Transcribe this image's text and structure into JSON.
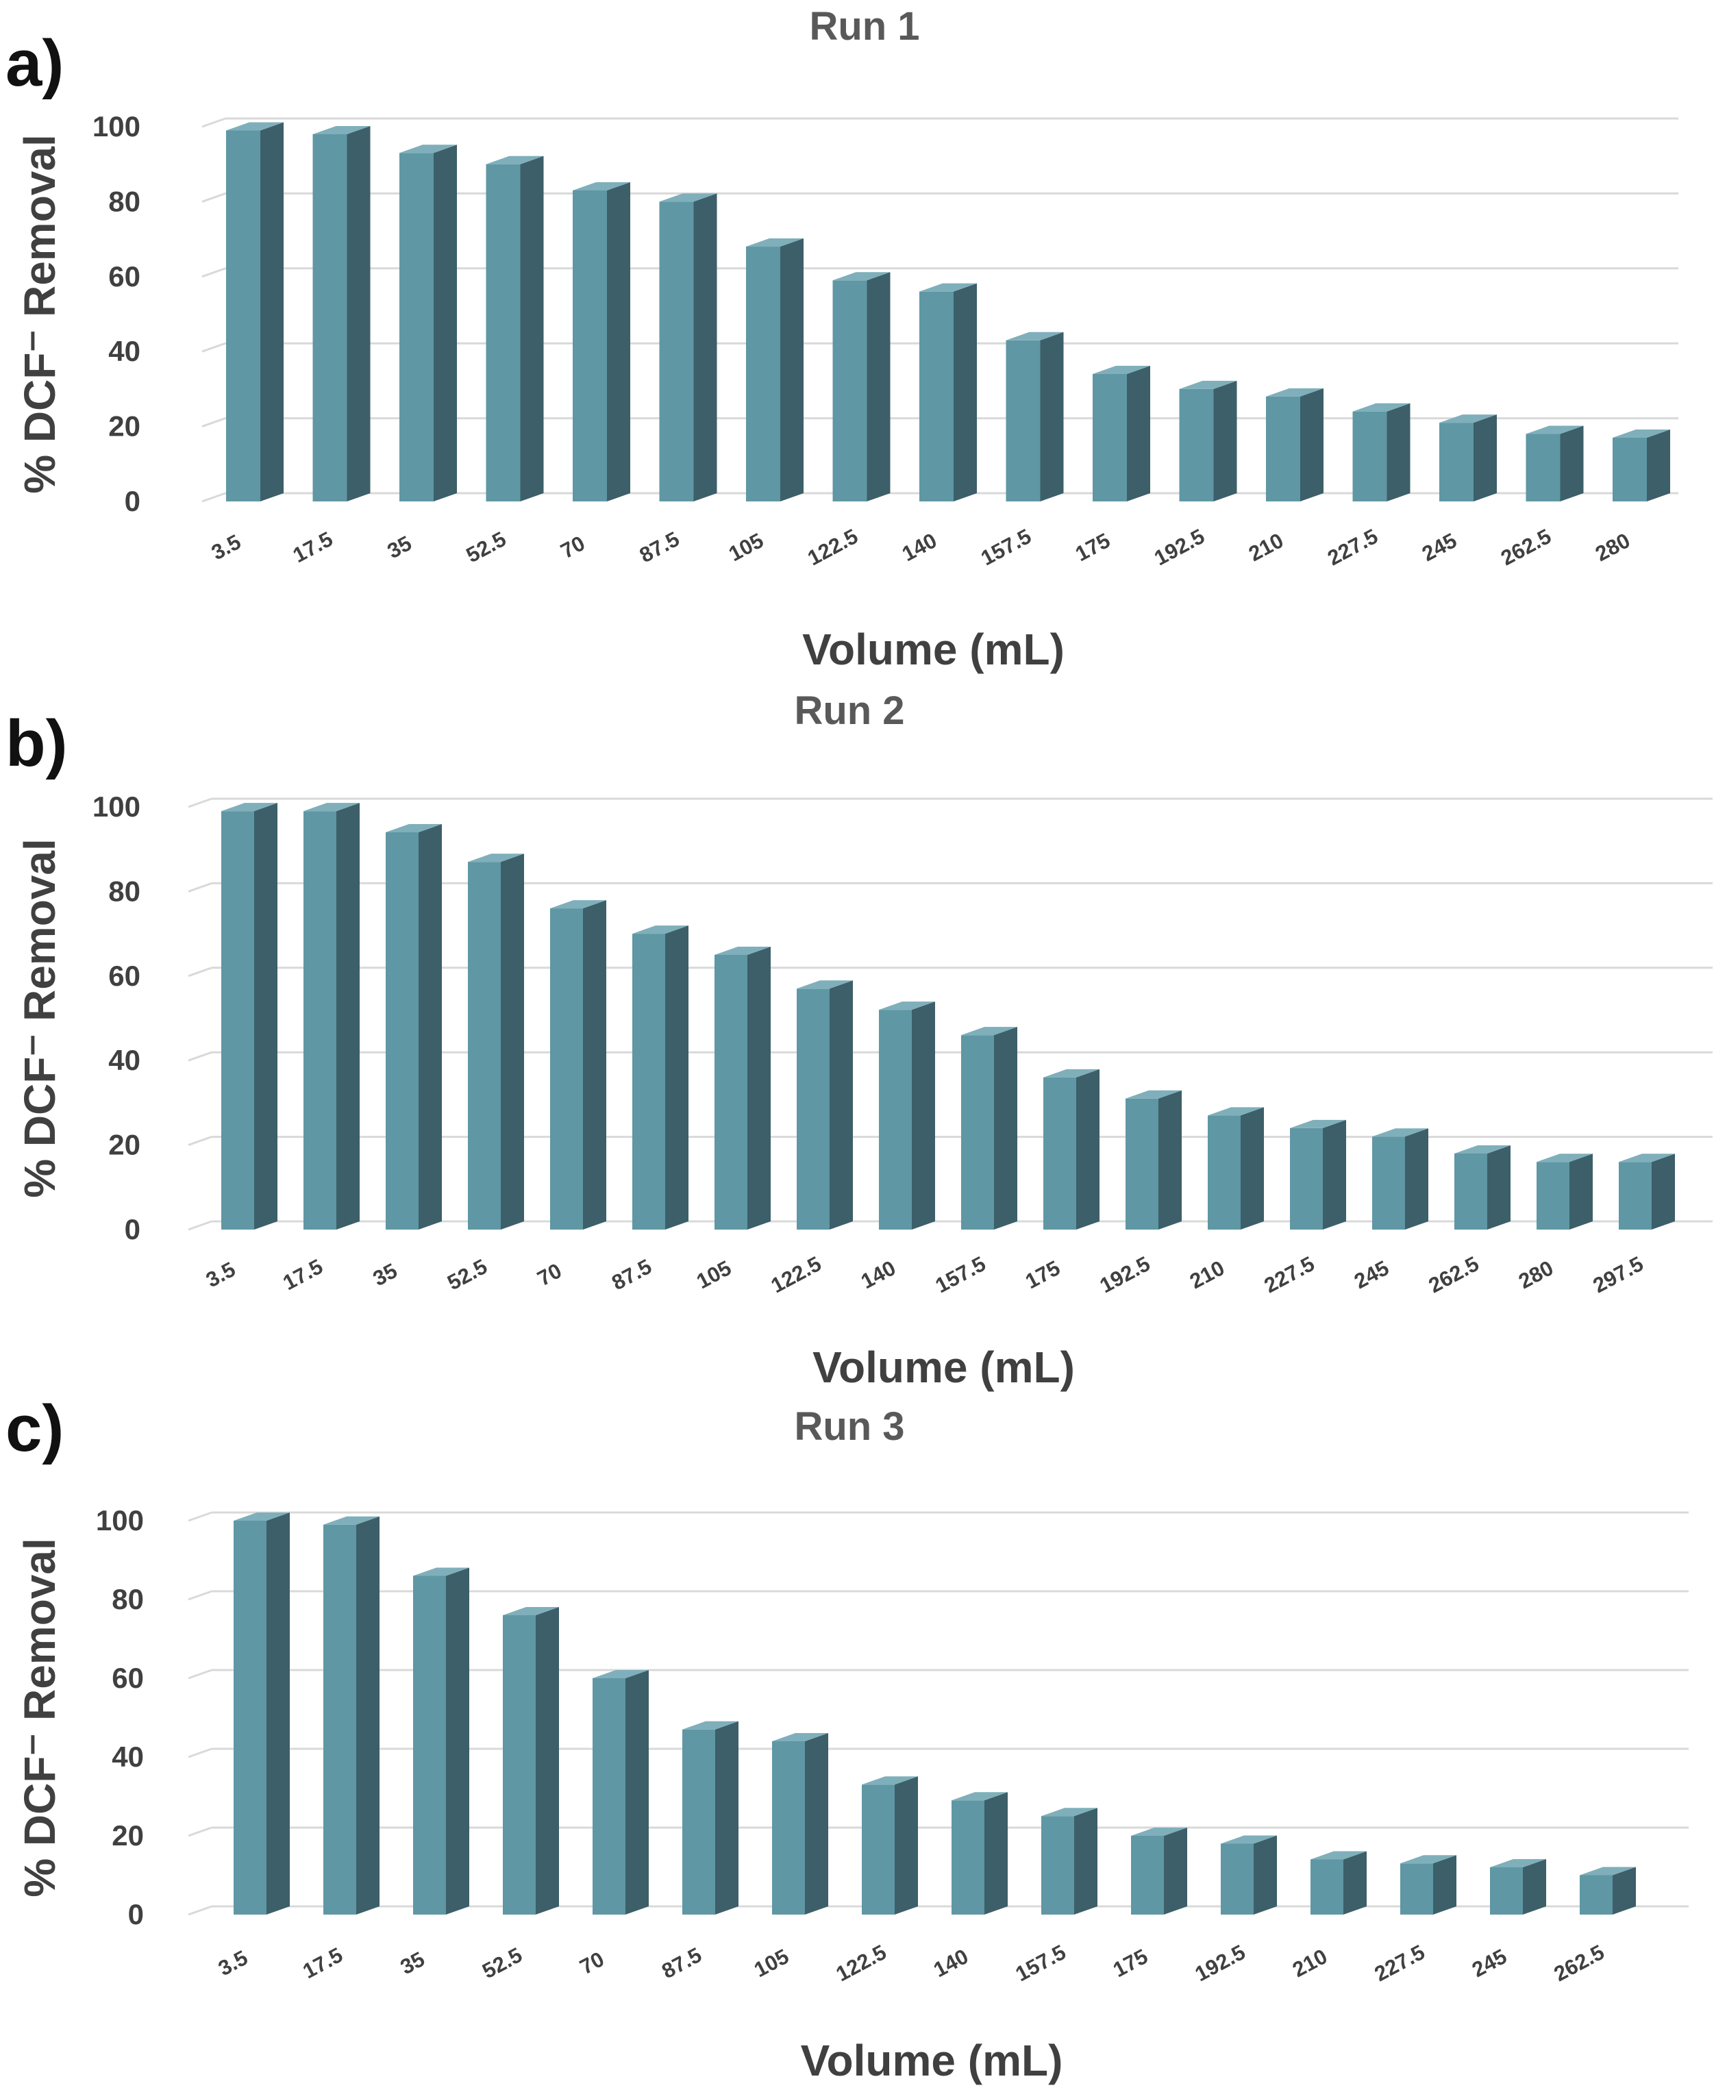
{
  "figure": {
    "bar_front_color": "#5f97a4",
    "bar_side_color": "#3c5f69",
    "bar_top_color": "#7fafba",
    "grid_color": "#d9d9d9"
  },
  "chart_data": [
    {
      "type": "bar",
      "panel_label": "a)",
      "title": "Run 1",
      "xlabel": "Volume (mL)",
      "ylabel": "% DCF⁻ Removal",
      "ylim": [
        0,
        100
      ],
      "yticks": [
        "0",
        "20",
        "40",
        "60",
        "80",
        "100"
      ],
      "grid": true,
      "categories": [
        "3.5",
        "17.5",
        "35",
        "52.5",
        "70",
        "87.5",
        "105",
        "122.5",
        "140",
        "157.5",
        "175",
        "192.5",
        "210",
        "227.5",
        "245",
        "262.5",
        "280"
      ],
      "values": [
        99,
        98,
        93,
        90,
        83,
        80,
        68,
        59,
        56,
        43,
        34,
        30,
        28,
        24,
        21,
        18,
        17
      ]
    },
    {
      "type": "bar",
      "panel_label": "b)",
      "title": "Run 2",
      "xlabel": "Volume (mL)",
      "ylabel": "% DCF⁻ Removal",
      "ylim": [
        0,
        100
      ],
      "yticks": [
        "0",
        "20",
        "40",
        "60",
        "80",
        "100"
      ],
      "grid": true,
      "categories": [
        "3.5",
        "17.5",
        "35",
        "52.5",
        "70",
        "87.5",
        "105",
        "122.5",
        "140",
        "157.5",
        "175",
        "192.5",
        "210",
        "227.5",
        "245",
        "262.5",
        "280",
        "297.5"
      ],
      "values": [
        99,
        99,
        94,
        87,
        76,
        70,
        65,
        57,
        52,
        46,
        36,
        31,
        27,
        24,
        22,
        18,
        16,
        16
      ]
    },
    {
      "type": "bar",
      "panel_label": "c)",
      "title": "Run 3",
      "xlabel": "Volume (mL)",
      "ylabel": "% DCF⁻ Removal",
      "ylim": [
        0,
        100
      ],
      "yticks": [
        "0",
        "20",
        "40",
        "60",
        "80",
        "100"
      ],
      "grid": true,
      "categories": [
        "3.5",
        "17.5",
        "35",
        "52.5",
        "70",
        "87.5",
        "105",
        "122.5",
        "140",
        "157.5",
        "175",
        "192.5",
        "210",
        "227.5",
        "245",
        "262.5"
      ],
      "values": [
        100,
        99,
        86,
        76,
        60,
        47,
        44,
        33,
        29,
        25,
        20,
        18,
        14,
        13,
        12,
        10
      ]
    }
  ]
}
